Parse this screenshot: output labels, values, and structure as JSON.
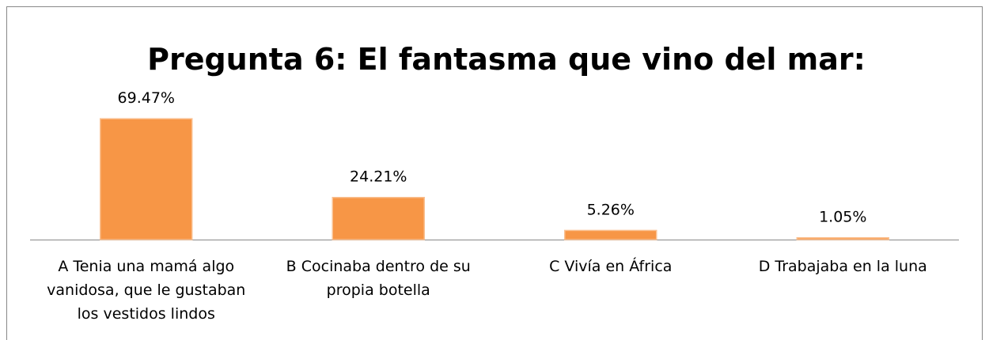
{
  "chart_data": {
    "type": "bar",
    "title": "Pregunta 6: El fantasma que vino del mar:",
    "categories": [
      "A Tenia una mamá algo vanidosa, que le gustaban los vestidos lindos",
      "B Cocinaba dentro de su propia botella",
      "C Vivía en África",
      "D Trabajaba en la luna"
    ],
    "values": [
      69.47,
      24.21,
      5.26,
      1.05
    ],
    "value_labels": [
      "69.47%",
      "24.21%",
      "5.26%",
      "1.05%"
    ],
    "color": "#f79646"
  }
}
